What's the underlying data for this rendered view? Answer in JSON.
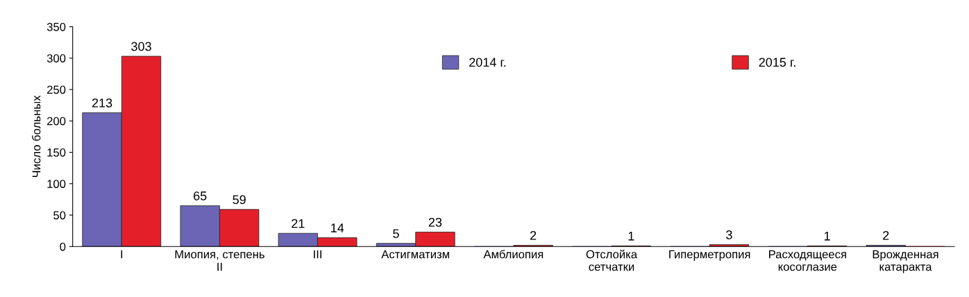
{
  "chart_data": {
    "type": "bar",
    "ylabel": "Число больных",
    "categories": [
      "I",
      "Миопия, степень\nII",
      "III",
      "Астигматизм",
      "Амблиопия",
      "Отслойка\nсетчатки",
      "Гиперметропия",
      "Расходящееся\nкосоглазие",
      "Врожденная\nкатаракта"
    ],
    "series": [
      {
        "name": "2014 г.",
        "color": "#6c64b4",
        "values": [
          213,
          65,
          21,
          5,
          0,
          0,
          0,
          0,
          2
        ],
        "value_labels": [
          "213",
          "65",
          "21",
          "5",
          null,
          null,
          null,
          null,
          "2"
        ]
      },
      {
        "name": "2015 г.",
        "color": "#e3202a",
        "values": [
          303,
          59,
          14,
          23,
          2,
          1,
          3,
          1,
          0
        ],
        "value_labels": [
          "303",
          "59",
          "14",
          "23",
          "2",
          "1",
          "3",
          "1",
          null
        ]
      }
    ],
    "ylim": [
      0,
      350
    ],
    "yticks": [
      0,
      50,
      100,
      150,
      200,
      250,
      300,
      350
    ],
    "grid": false,
    "legend": "top"
  }
}
